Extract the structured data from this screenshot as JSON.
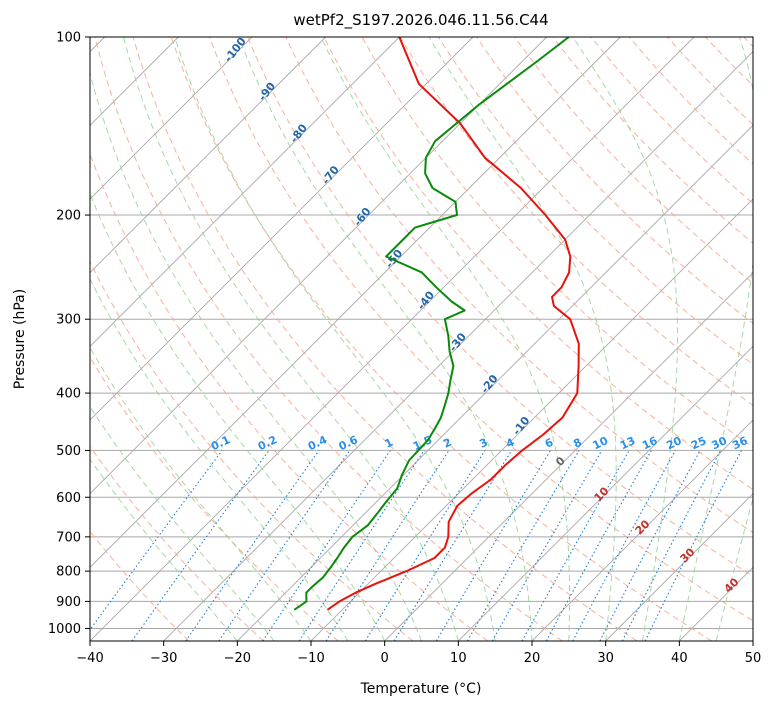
{
  "chart_data": {
    "type": "line",
    "title": "wetPf2_S197.2026.046.11.56.C44",
    "xlabel": "Temperature (°C)",
    "ylabel": "Pressure (hPa)",
    "xlim": [
      -40,
      50
    ],
    "ylim": [
      1050,
      100
    ],
    "y_scale": "log",
    "skew": true,
    "grid": true,
    "x_ticks": [
      -40,
      -30,
      -20,
      -10,
      0,
      10,
      20,
      30,
      40,
      50
    ],
    "y_ticks": [
      100,
      200,
      300,
      400,
      500,
      600,
      700,
      800,
      900,
      1000
    ],
    "colors": {
      "temperature": "#e8120c",
      "dewpoint": "#0a8a0a",
      "dry_adiabat": "#f4a58a",
      "moist_adiabat": "#8fcf8f",
      "mixing_ratio": "#1f7fd6",
      "isotherm_grid": "#a8a8a8",
      "label_blue": "#2467a8",
      "label_mr": "#2a8fe8",
      "label_red": "#c8302a"
    },
    "series": [
      {
        "key": "temperature",
        "pressure": [
          930,
          900,
          870,
          840,
          800,
          760,
          730,
          700,
          660,
          620,
          590,
          560,
          530,
          500,
          470,
          440,
          400,
          360,
          330,
          300,
          285,
          275,
          265,
          250,
          235,
          220,
          200,
          180,
          160,
          140,
          120,
          100
        ],
        "temp": [
          -12,
          -11.5,
          -10.5,
          -9,
          -6.5,
          -4.5,
          -4.5,
          -5.5,
          -7.5,
          -8.5,
          -8.2,
          -7.5,
          -7.5,
          -7.2,
          -6.5,
          -6.2,
          -7.5,
          -11,
          -14,
          -18.5,
          -22.5,
          -24,
          -24,
          -25,
          -27,
          -30,
          -36,
          -43,
          -52,
          -60,
          -71,
          -80
        ]
      },
      {
        "key": "dewpoint",
        "pressure": [
          930,
          900,
          870,
          850,
          820,
          790,
          760,
          730,
          700,
          670,
          640,
          610,
          580,
          550,
          520,
          500,
          480,
          460,
          440,
          420,
          400,
          380,
          360,
          340,
          320,
          300,
          290,
          280,
          265,
          250,
          235,
          220,
          210,
          200,
          190,
          180,
          170,
          160,
          150,
          130,
          110,
          100
        ],
        "temp": [
          -16.5,
          -16,
          -17.2,
          -17.2,
          -17,
          -17.3,
          -17.7,
          -18.2,
          -18.5,
          -18,
          -18.3,
          -18.7,
          -19,
          -20.2,
          -21.2,
          -21.3,
          -21.4,
          -22,
          -22.7,
          -23.8,
          -25,
          -26.5,
          -28,
          -30.5,
          -32.8,
          -35.5,
          -34,
          -37,
          -41,
          -45,
          -52,
          -52,
          -52,
          -48,
          -50,
          -55,
          -58,
          -60,
          -61,
          -60,
          -58,
          -57
        ]
      }
    ],
    "dry_adiabat_labels": [
      "-100",
      "-90",
      "-80",
      "-70",
      "-60",
      "-50",
      "-40",
      "-30",
      "-20",
      "-10"
    ],
    "mixing_ratio_labels": [
      "0.1",
      "0.2",
      "0.4",
      "0.6",
      "1",
      "1.5",
      "2",
      "3",
      "4",
      "6",
      "8",
      "10",
      "13",
      "16",
      "20",
      "25",
      "30",
      "36"
    ],
    "moist_adiabat_labels": [
      "0",
      "10",
      "20",
      "30",
      "40"
    ]
  }
}
